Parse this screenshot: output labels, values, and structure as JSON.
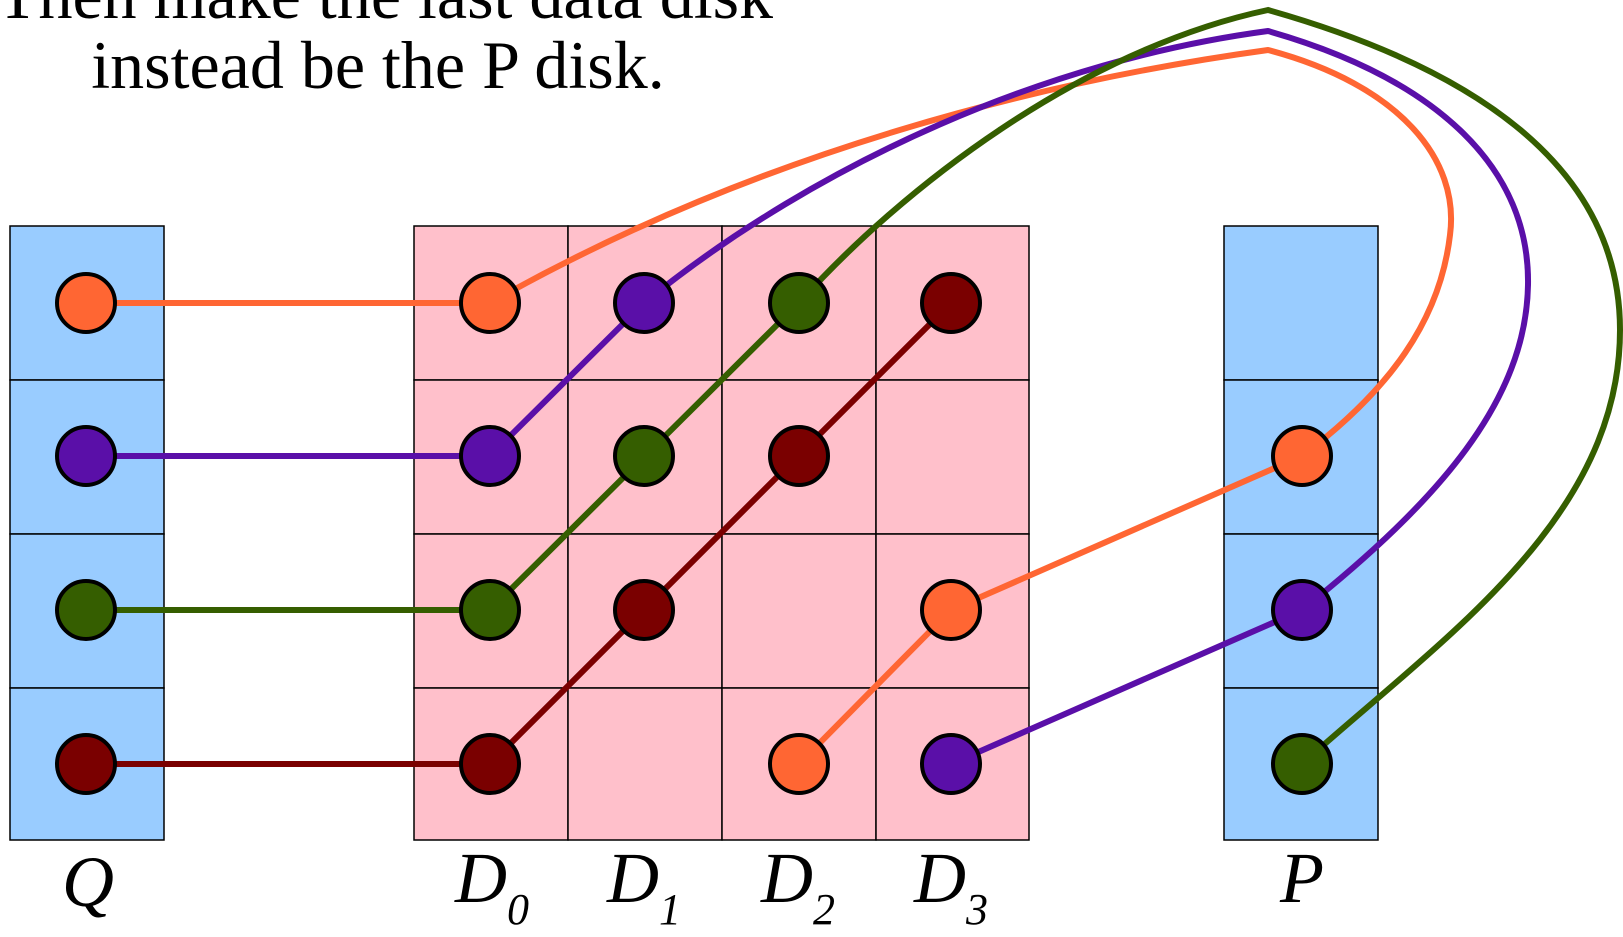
{
  "caption": {
    "line1": "Then make the last data disk",
    "line2": "instead be the P disk."
  },
  "disks": {
    "q": {
      "letter": "Q",
      "subscript": ""
    },
    "d0": {
      "letter": "D",
      "subscript": "0"
    },
    "d1": {
      "letter": "D",
      "subscript": "1"
    },
    "d2": {
      "letter": "D",
      "subscript": "2"
    },
    "d3": {
      "letter": "D",
      "subscript": "3"
    },
    "p": {
      "letter": "P",
      "subscript": ""
    }
  },
  "colors": {
    "parity_disk_fill": "#99ccff",
    "data_disk_fill": "#ffc0cb",
    "orange": "#ff6633",
    "purple": "#5a0fa8",
    "green": "#355e00",
    "maroon": "#7a0000"
  },
  "diagonals": [
    {
      "name": "orange",
      "color_key": "orange",
      "cells": [
        "Q0",
        "D0-0",
        "D3-2",
        "D2-3",
        "P1"
      ]
    },
    {
      "name": "purple",
      "color_key": "purple",
      "cells": [
        "Q1",
        "D0-1",
        "D1-0",
        "D3-3",
        "P2"
      ]
    },
    {
      "name": "green",
      "color_key": "green",
      "cells": [
        "Q2",
        "D0-2",
        "D1-1",
        "D2-0",
        "P3"
      ]
    },
    {
      "name": "maroon",
      "color_key": "maroon",
      "cells": [
        "Q3",
        "D0-3",
        "D1-2",
        "D2-1",
        "D3-0"
      ]
    }
  ]
}
